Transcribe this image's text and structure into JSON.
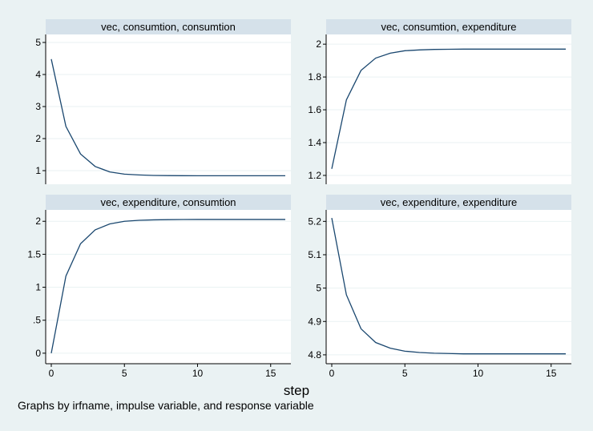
{
  "figure": {
    "xlabel": "step",
    "note": "Graphs by irfname, impulse variable, and response variable",
    "colors": {
      "background": "#eaf2f3",
      "plot_area": "#ffffff",
      "header": "#d5e1ea",
      "line": "#1a476f",
      "grid": "#eaf2f3",
      "axis": "#000000"
    }
  },
  "chart_data": [
    {
      "type": "line",
      "title": "vec, consumtion, consumtion",
      "x": [
        0,
        1,
        2,
        3,
        4,
        5,
        6,
        7,
        8,
        9,
        10,
        11,
        12,
        13,
        14,
        15,
        16
      ],
      "values": [
        4.48,
        2.38,
        1.52,
        1.13,
        0.96,
        0.89,
        0.865,
        0.85,
        0.845,
        0.842,
        0.84,
        0.84,
        0.84,
        0.84,
        0.84,
        0.84,
        0.84
      ],
      "xlim": [
        0,
        16
      ],
      "ylim": [
        0.8,
        5.1
      ],
      "yticks": [
        1,
        2,
        3,
        4,
        5
      ],
      "ytick_labels": [
        "1",
        "2",
        "3",
        "4",
        "5"
      ],
      "xticks": [
        0,
        5,
        10,
        15
      ],
      "xtick_labels": [
        "0",
        "5",
        "10",
        "15"
      ],
      "show_xticks": false
    },
    {
      "type": "line",
      "title": "vec, consumtion, expenditure",
      "x": [
        0,
        1,
        2,
        3,
        4,
        5,
        6,
        7,
        8,
        9,
        10,
        11,
        12,
        13,
        14,
        15,
        16
      ],
      "values": [
        1.24,
        1.66,
        1.84,
        1.915,
        1.945,
        1.96,
        1.965,
        1.968,
        1.969,
        1.97,
        1.97,
        1.97,
        1.97,
        1.97,
        1.97,
        1.97,
        1.97
      ],
      "xlim": [
        0,
        16
      ],
      "ylim": [
        1.19,
        2.03
      ],
      "yticks": [
        1.2,
        1.4,
        1.6,
        1.8,
        2
      ],
      "ytick_labels": [
        "1.2",
        "1.4",
        "1.6",
        "1.8",
        "2"
      ],
      "xticks": [
        0,
        5,
        10,
        15
      ],
      "xtick_labels": [
        "0",
        "5",
        "10",
        "15"
      ],
      "show_xticks": false
    },
    {
      "type": "line",
      "title": "vec, expenditure, consumtion",
      "x": [
        0,
        1,
        2,
        3,
        4,
        5,
        6,
        7,
        8,
        9,
        10,
        11,
        12,
        13,
        14,
        15,
        16
      ],
      "values": [
        0.0,
        1.17,
        1.66,
        1.87,
        1.96,
        2.0,
        2.015,
        2.022,
        2.025,
        2.027,
        2.028,
        2.028,
        2.028,
        2.028,
        2.028,
        2.028,
        2.028
      ],
      "xlim": [
        0,
        16
      ],
      "ylim": [
        -0.05,
        2.1
      ],
      "yticks": [
        0,
        0.5,
        1,
        1.5,
        2
      ],
      "ytick_labels": [
        "0",
        ".5",
        "1",
        "1.5",
        "2"
      ],
      "xticks": [
        0,
        5,
        10,
        15
      ],
      "xtick_labels": [
        "0",
        "5",
        "10",
        "15"
      ],
      "show_xticks": true
    },
    {
      "type": "line",
      "title": "vec, expenditure, expenditure",
      "x": [
        0,
        1,
        2,
        3,
        4,
        5,
        6,
        7,
        8,
        9,
        10,
        11,
        12,
        13,
        14,
        15,
        16
      ],
      "values": [
        5.21,
        4.98,
        4.878,
        4.837,
        4.82,
        4.811,
        4.807,
        4.805,
        4.804,
        4.803,
        4.803,
        4.803,
        4.803,
        4.803,
        4.803,
        4.803,
        4.803
      ],
      "xlim": [
        0,
        16
      ],
      "ylim": [
        4.795,
        5.22
      ],
      "yticks": [
        4.8,
        4.9,
        5,
        5.1,
        5.2
      ],
      "ytick_labels": [
        "4.8",
        "4.9",
        "5",
        "5.1",
        "5.2"
      ],
      "xticks": [
        0,
        5,
        10,
        15
      ],
      "xtick_labels": [
        "0",
        "5",
        "10",
        "15"
      ],
      "show_xticks": true
    }
  ]
}
